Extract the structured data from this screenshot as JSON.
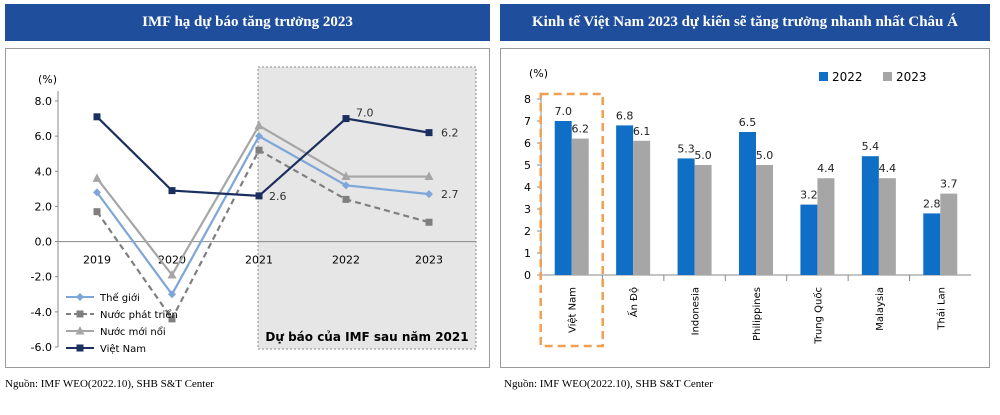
{
  "left": {
    "title": "IMF hạ dự báo tăng trưởng 2023",
    "source": "Nguồn: IMF WEO(2022.10), SHB S&T Center",
    "forecast_label": "Dự báo của IMF sau năm 2021"
  },
  "right": {
    "title": "Kinh tế Việt Nam 2023 dự kiến sẽ tăng trưởng nhanh nhất Châu Á",
    "source": "Nguồn: IMF WEO(2022.10), SHB S&T Center"
  },
  "chart_data": [
    {
      "type": "line",
      "ylabel": "(%)",
      "ylim": [
        -6,
        8
      ],
      "yticks": [
        "8.0",
        "6.0",
        "4.0",
        "2.0",
        "0.0",
        "-2.0",
        "-4.0",
        "-6.0"
      ],
      "x": [
        "2019",
        "2020",
        "2021",
        "2022",
        "2023"
      ],
      "series": [
        {
          "name": "Thế giới",
          "values": [
            2.8,
            -3.0,
            6.0,
            3.2,
            2.7
          ],
          "color": "#7ea6d8",
          "dashed": false,
          "marker": "diamond"
        },
        {
          "name": "Nước phát triển",
          "values": [
            1.7,
            -4.4,
            5.2,
            2.4,
            1.1
          ],
          "color": "#7f7f7f",
          "dashed": true,
          "marker": "square"
        },
        {
          "name": "Nước mới nổi",
          "values": [
            3.6,
            -1.9,
            6.6,
            3.7,
            3.7
          ],
          "color": "#a6a6a6",
          "dashed": false,
          "marker": "triangle"
        },
        {
          "name": "Việt Nam",
          "values": [
            7.1,
            2.9,
            2.6,
            7.0,
            6.2
          ],
          "color": "#1b2f5e",
          "dashed": false,
          "marker": "square"
        }
      ],
      "annotations": [
        {
          "text": "2.6",
          "series": "Việt Nam",
          "index": 2
        },
        {
          "text": "7.0",
          "series": "Việt Nam",
          "index": 3
        },
        {
          "text": "6.2",
          "series": "Việt Nam",
          "index": 4
        },
        {
          "text": "2.7",
          "series": "Thế giới",
          "index": 4
        }
      ],
      "grid": false,
      "legend": "bottom-left"
    },
    {
      "type": "bar",
      "ylabel": "(%)",
      "ylim": [
        0,
        8
      ],
      "yticks": [
        "0",
        "1",
        "2",
        "3",
        "4",
        "5",
        "6",
        "7",
        "8"
      ],
      "categories": [
        "Việt Nam",
        "Ấn Độ",
        "Indonesia",
        "Philippines",
        "Trung Quốc",
        "Malaysia",
        "Thái Lan"
      ],
      "series": [
        {
          "name": "2022",
          "values": [
            7.0,
            6.8,
            5.3,
            6.5,
            3.2,
            5.4,
            2.8
          ],
          "color": "#0f6fc6"
        },
        {
          "name": "2023",
          "values": [
            6.2,
            6.1,
            5.0,
            5.0,
            4.4,
            4.4,
            3.7
          ],
          "color": "#a6a6a6"
        }
      ],
      "data_labels": [
        [
          "7.0",
          "6.8",
          "5.3",
          "6.5",
          "3.2",
          "5.4",
          "2.8"
        ],
        [
          "6.2",
          "6.1",
          "5.0",
          "5.0",
          "4.4",
          "4.4",
          "3.7"
        ]
      ],
      "highlight_category": "Việt Nam",
      "highlight_color": "#f0a050",
      "grid": false,
      "legend": "top-right"
    }
  ]
}
